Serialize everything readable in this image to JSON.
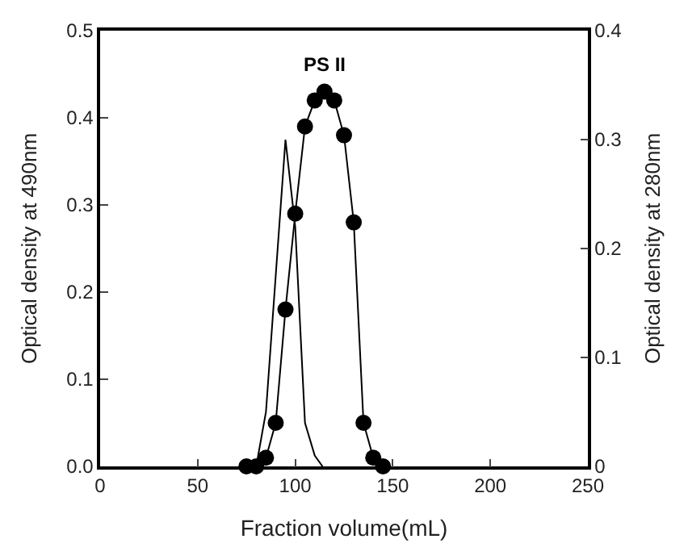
{
  "chart_data": {
    "type": "line",
    "xlabel": "Fraction volume(mL)",
    "ylabel": "Optical density at 490nm",
    "y2label": "Optical density at 280nm",
    "xlim": [
      0,
      250
    ],
    "xticks": [
      0,
      50,
      100,
      150,
      200,
      250
    ],
    "ylim": [
      0,
      0.5
    ],
    "yticks": [
      {
        "value": 0,
        "label": "0.0"
      },
      0.1,
      0.2,
      0.3,
      0.4,
      0.5
    ],
    "y2lim": [
      0,
      0.4
    ],
    "y2ticks": [
      0,
      0.1,
      0.2,
      0.3,
      0.4
    ],
    "legend": false,
    "annotations": [
      "PS II"
    ],
    "series": [
      {
        "marker": "circle",
        "color": "#000000",
        "x": [
          75,
          80,
          85,
          90,
          95,
          100,
          105,
          110,
          115,
          120,
          125,
          130,
          135,
          140,
          145
        ],
        "values": [
          0,
          0,
          0.01,
          0.05,
          0.18,
          0.29,
          0.39,
          0.42,
          0.43,
          0.42,
          0.38,
          0.28,
          0.05,
          0.01,
          0
        ]
      },
      {
        "marker": "none",
        "axis": "y2",
        "color": "#000000",
        "x": [
          80,
          85,
          95,
          100,
          105,
          110,
          114
        ],
        "values": [
          0,
          0.05,
          0.3,
          0.22,
          0.04,
          0.01,
          0
        ]
      }
    ]
  }
}
